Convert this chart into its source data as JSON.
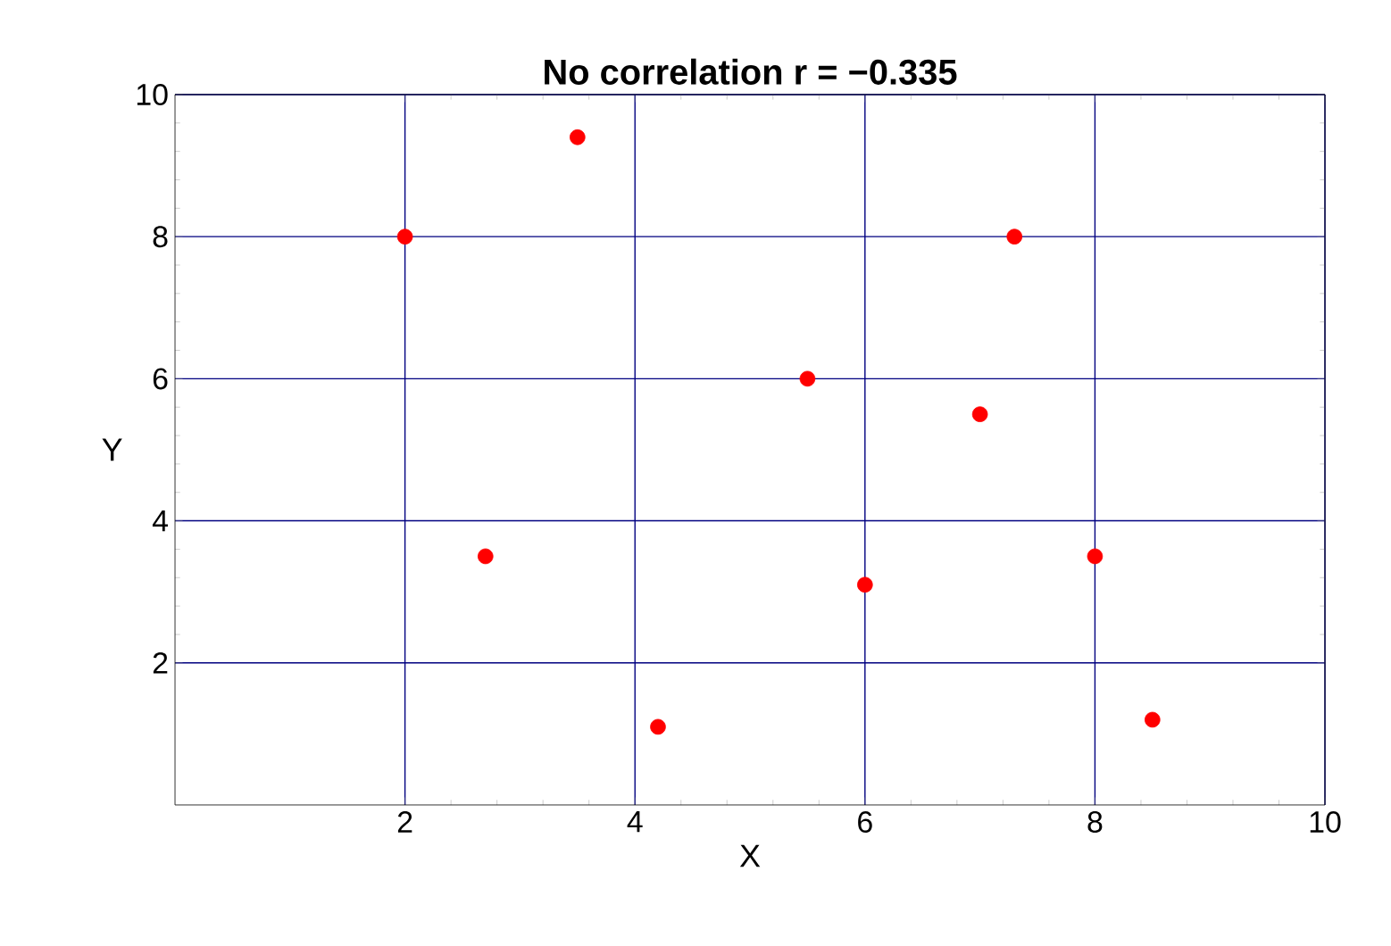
{
  "chart_data": {
    "type": "scatter",
    "title": "No  correlation    r = −0.335",
    "xlabel": "X",
    "ylabel": "Y",
    "x": [
      2,
      2.7,
      3.5,
      4.2,
      5.5,
      6,
      7,
      7.3,
      8,
      8.5
    ],
    "values": [
      8,
      3.5,
      9.4,
      1.1,
      6,
      3.1,
      5.5,
      8,
      3.5,
      1.2
    ],
    "color": "#ff0000",
    "marker": "circle",
    "xlim": [
      0,
      10
    ],
    "ylim": [
      0,
      10
    ],
    "xticks": [
      2,
      4,
      6,
      8,
      10
    ],
    "yticks": [
      2,
      4,
      6,
      8,
      10
    ],
    "grid": true
  }
}
